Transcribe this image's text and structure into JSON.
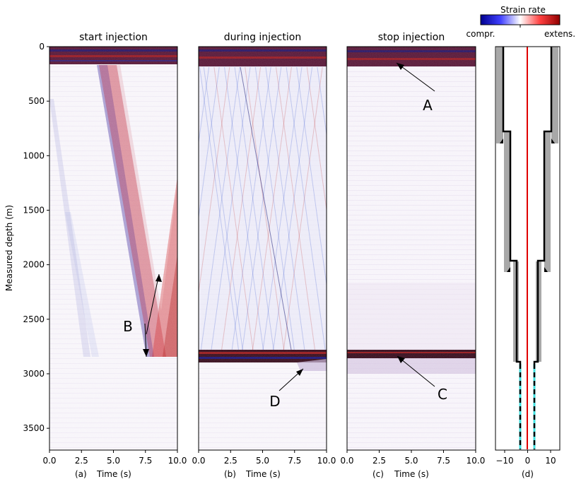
{
  "chart_data": [
    {
      "type": "heatmap",
      "panel": "(a)",
      "title": "start injection",
      "xlabel": "Time (s)",
      "ylabel": "Measured depth (m)",
      "xlim": [
        0,
        10
      ],
      "ylim": [
        3700,
        0
      ],
      "xticks": [
        "0.0",
        "2.5",
        "5.0",
        "7.5",
        "10.0"
      ],
      "yticks": [
        "0",
        "500",
        "1000",
        "1500",
        "2000",
        "2500",
        "3000",
        "3500"
      ],
      "annotations": [
        {
          "text": "B"
        }
      ]
    },
    {
      "type": "heatmap",
      "panel": "(b)",
      "title": "during injection",
      "xlabel": "Time (s)",
      "xlim": [
        0,
        10
      ],
      "ylim": [
        3700,
        0
      ],
      "xticks": [
        "0.0",
        "2.5",
        "5.0",
        "7.5",
        "10.0"
      ],
      "annotations": [
        {
          "text": "D"
        }
      ]
    },
    {
      "type": "heatmap",
      "panel": "(c)",
      "title": "stop injection",
      "xlabel": "Time (s)",
      "xlim": [
        0,
        10
      ],
      "ylim": [
        3700,
        0
      ],
      "xticks": [
        "0.0",
        "2.5",
        "5.0",
        "7.5",
        "10.0"
      ],
      "annotations": [
        {
          "text": "A"
        },
        {
          "text": "C"
        }
      ]
    },
    {
      "type": "line",
      "panel": "(d)",
      "xlabel": "",
      "xlim": [
        -14,
        14
      ],
      "ylim": [
        3700,
        0
      ],
      "xticks": [
        "−10",
        "0",
        "10"
      ]
    }
  ],
  "colorbar": {
    "title": "Strain rate",
    "left_label": "compr.",
    "right_label": "extens.",
    "colors": [
      "#0000a0",
      "#ffffff",
      "#a00000"
    ]
  }
}
